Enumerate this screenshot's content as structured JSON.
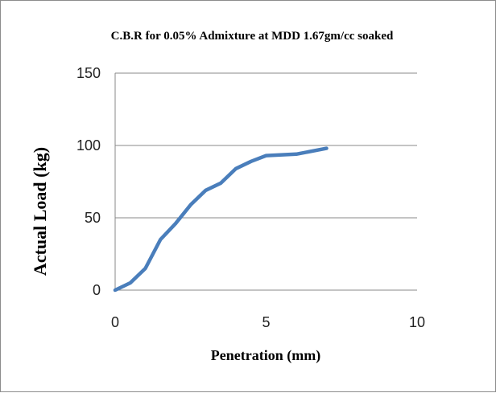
{
  "chart_data": {
    "type": "line",
    "title": "C.B.R for 0.05% Admixture at MDD 1.67gm/cc soaked",
    "xlabel": "Penetration (mm)",
    "ylabel": "Actual Load (kg)",
    "xlim": [
      0,
      10
    ],
    "ylim": [
      0,
      150
    ],
    "x_ticks": [
      "0",
      "5",
      "10"
    ],
    "y_ticks": [
      "0",
      "50",
      "100",
      "150"
    ],
    "grid": "horizontal",
    "legend": "none",
    "series": [
      {
        "color": "#4a7ebb",
        "x": [
          0,
          0.5,
          1,
          1.5,
          2,
          2.5,
          3,
          3.5,
          4,
          4.5,
          5,
          6,
          7
        ],
        "y": [
          0,
          5,
          15,
          35,
          46,
          59,
          69,
          74,
          84,
          89,
          93,
          94,
          98
        ]
      }
    ]
  }
}
